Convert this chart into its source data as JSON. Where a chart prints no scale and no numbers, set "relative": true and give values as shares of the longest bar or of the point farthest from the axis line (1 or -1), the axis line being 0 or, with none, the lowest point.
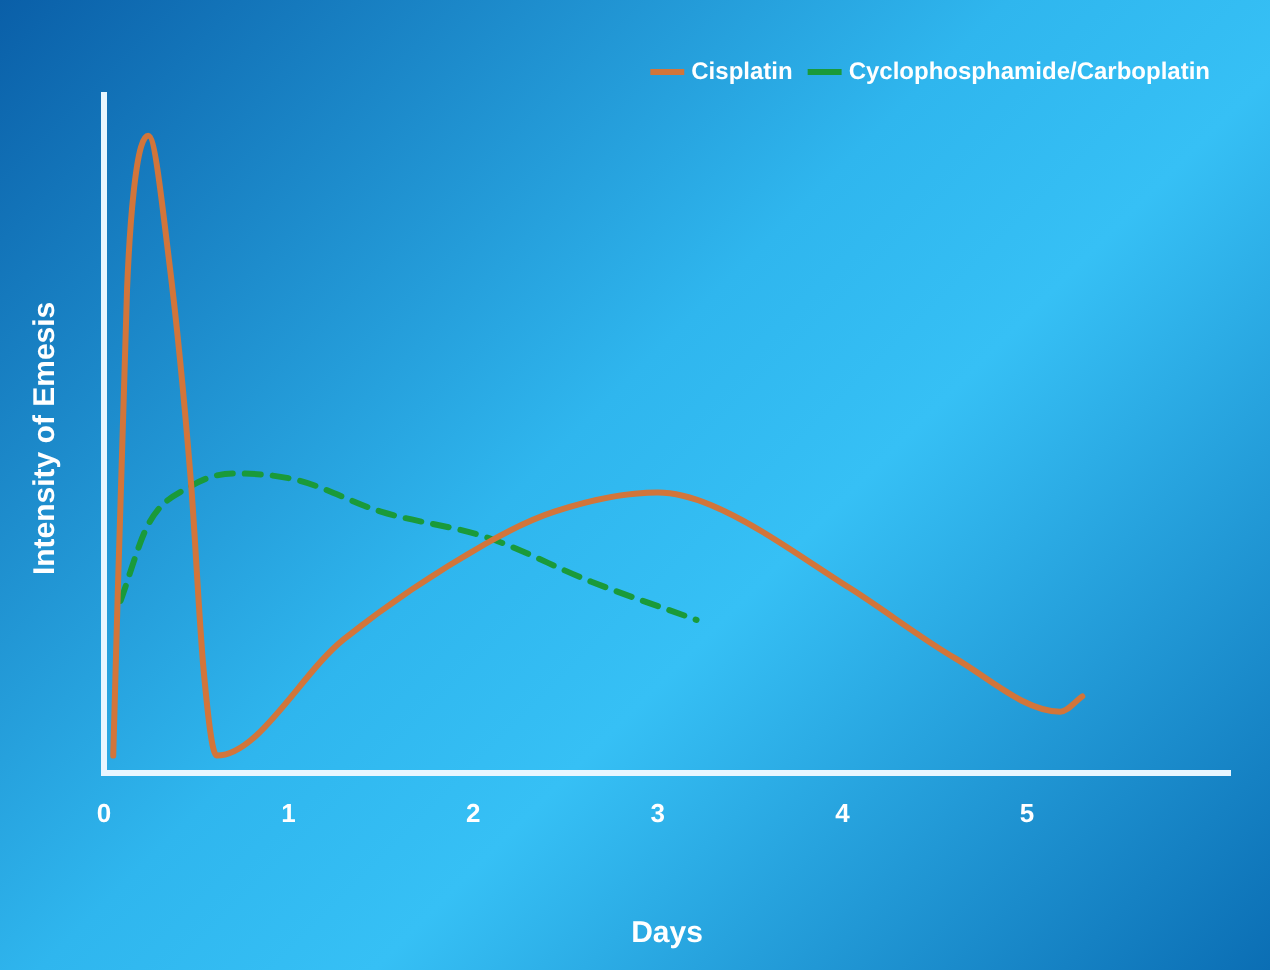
{
  "chart_data": {
    "type": "line",
    "xlabel": "Days",
    "ylabel": "Intensity of Emesis",
    "relative": true,
    "xlim": [
      0,
      6.1
    ],
    "xticks": [
      0,
      1,
      2,
      3,
      4,
      5
    ],
    "grid": false,
    "legend": "top right",
    "marker": "none",
    "series": [
      {
        "name": "Cisplatin",
        "color": "#d2753a",
        "line_style": "solid",
        "x": [
          0.05,
          0.125,
          0.16,
          0.24,
          0.35,
          0.47,
          0.54,
          0.61,
          1.3,
          2.07,
          2.44,
          3.0,
          3.29,
          4.04,
          4.61,
          5.18,
          5.3
        ],
        "values": [
          0.027,
          0.76,
          0.91,
          1,
          0.81,
          0.46,
          0.16,
          0.027,
          0.21,
          0.36,
          0.41,
          0.44,
          0.42,
          0.29,
          0.18,
          0.096,
          0.12
        ]
      },
      {
        "name": "Cyclophosphamide/Carboplatin",
        "color": "#1a9a3a",
        "line_style": "dashed",
        "x": [
          0.09,
          0.24,
          0.47,
          0.7,
          1.04,
          1.5,
          2.07,
          2.64,
          3.21
        ],
        "values": [
          0.27,
          0.39,
          0.45,
          0.47,
          0.46,
          0.41,
          0.37,
          0.3,
          0.24
        ]
      }
    ]
  }
}
